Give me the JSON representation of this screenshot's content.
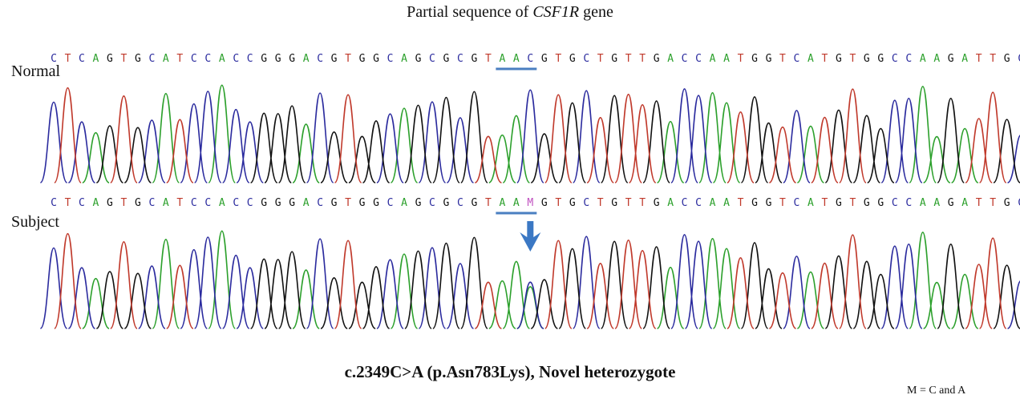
{
  "title_prefix": "Partial sequence of ",
  "title_gene": "CSF1R",
  "title_suffix": " gene",
  "tracks": [
    {
      "label": "Normal",
      "sequence": "CTCAGTGCATCCACCGGGACGTGGCAGCGCGTAACGTGCTGTTGACCAATGGTCATGTGGCCAAGATTGC"
    },
    {
      "label": "Subject",
      "sequence": "CTCAGTGCATCCACCGGGACGTGGCAGCGCGTAAMGTGCTGTTGACCAATGGTCATGTGGCCAAGATTGC"
    }
  ],
  "highlight_codon": {
    "start": 32,
    "length": 3
  },
  "variant_position": 34,
  "caption": "c.2349C>A (p.Asn783Lys), Novel heterozygote",
  "note": "M = C and A",
  "colors": {
    "A": "#2ca02c",
    "C": "#2b2b9e",
    "G": "#111111",
    "T": "#c0392b",
    "M": "#c050c0",
    "underline": "#4a7fc1",
    "arrow": "#3b78c4"
  }
}
